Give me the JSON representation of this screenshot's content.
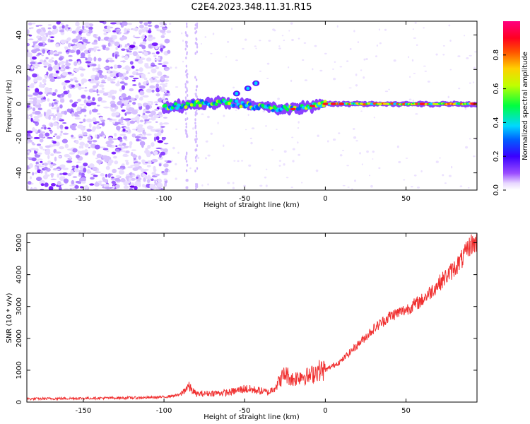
{
  "figure_title": "C2E4.2023.348.11.31.R15",
  "colors": {
    "snr_line": "#f03030",
    "background": "#ffffff",
    "axis": "#000000"
  },
  "chart_data": [
    {
      "type": "heatmap",
      "title": "C2E4.2023.348.11.31.R15",
      "xlabel": "Height of straight line (km)",
      "ylabel": "Frequency (Hz)",
      "xlim": [
        -185,
        94
      ],
      "ylim": [
        -50,
        48
      ],
      "x_ticks": [
        -150,
        -100,
        -50,
        0,
        50
      ],
      "x_tick_labels": [
        "-150",
        "-100",
        "-50",
        "0",
        "50"
      ],
      "y_ticks": [
        -40,
        -20,
        0,
        20,
        40
      ],
      "y_tick_labels": [
        "-40",
        "-20",
        "0",
        "20",
        "40"
      ],
      "colorbar": {
        "label": "Normalized spectral amplitude",
        "range": [
          0,
          1
        ],
        "ticks": [
          0,
          0.2,
          0.4,
          0.6,
          0.8
        ],
        "tick_labels": [
          "0.0",
          "0.2",
          "0.4",
          "0.6",
          "0.8"
        ],
        "colormap": "rainbow (white-violet-blue-cyan-green-yellow-red-magenta)"
      },
      "features": {
        "noise_region_height_km": [
          -185,
          -97
        ],
        "signal_band": [
          {
            "x": -100,
            "freq_hz": -2
          },
          {
            "x": -80,
            "freq_hz": 0
          },
          {
            "x": -60,
            "freq_hz": 1
          },
          {
            "x": -40,
            "freq_hz": -2
          },
          {
            "x": -20,
            "freq_hz": -3
          },
          {
            "x": 0,
            "freq_hz": 0
          },
          {
            "x": 20,
            "freq_hz": 0
          },
          {
            "x": 50,
            "freq_hz": 0
          },
          {
            "x": 94,
            "freq_hz": 0
          }
        ],
        "secondary_branch": [
          {
            "x": -55,
            "freq_hz": 6
          },
          {
            "x": -48,
            "freq_hz": 9
          },
          {
            "x": -43,
            "freq_hz": 12
          }
        ]
      }
    },
    {
      "type": "line",
      "xlabel": "Height of straight line (km)",
      "ylabel": "SNR (10 * v/v)",
      "xlim": [
        -185,
        94
      ],
      "ylim": [
        0,
        5300
      ],
      "x_ticks": [
        -150,
        -100,
        -50,
        0,
        50
      ],
      "x_tick_labels": [
        "-150",
        "-100",
        "-50",
        "0",
        "50"
      ],
      "y_ticks": [
        0,
        1000,
        2000,
        3000,
        4000,
        5000
      ],
      "y_tick_labels": [
        "0",
        "1000",
        "2000",
        "3000",
        "4000",
        "5000"
      ],
      "series": [
        {
          "color": "#f03030",
          "x": [
            -185,
            -170,
            -150,
            -130,
            -110,
            -100,
            -90,
            -85,
            -80,
            -70,
            -60,
            -50,
            -40,
            -35,
            -30,
            -25,
            -20,
            -15,
            -10,
            -5,
            0,
            10,
            20,
            30,
            40,
            50,
            60,
            70,
            80,
            85,
            90,
            94
          ],
          "y": [
            100,
            110,
            120,
            130,
            140,
            160,
            230,
            500,
            250,
            280,
            300,
            420,
            350,
            300,
            550,
            900,
            700,
            850,
            800,
            1000,
            1000,
            1300,
            1800,
            2300,
            2700,
            2900,
            3200,
            3700,
            4200,
            4500,
            4950,
            5000
          ]
        }
      ]
    }
  ]
}
